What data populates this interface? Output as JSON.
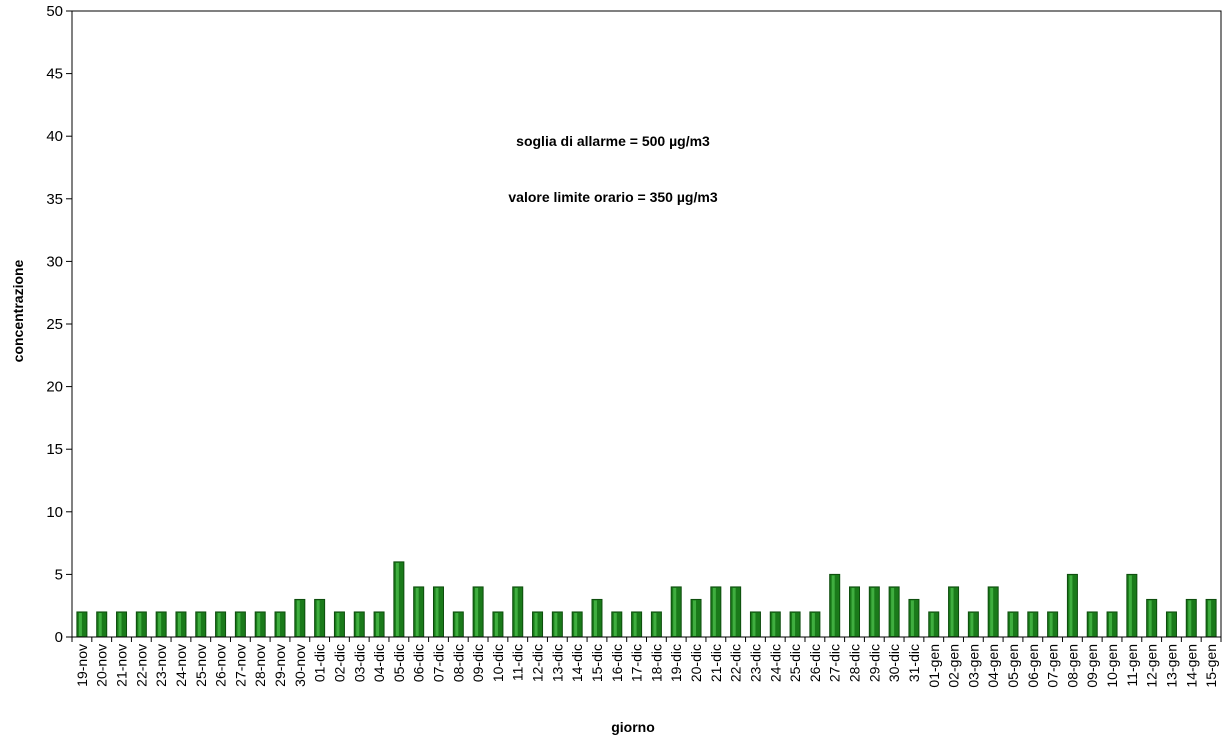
{
  "chart_data": {
    "type": "bar",
    "title": "",
    "xlabel": "giorno",
    "ylabel": "concentrazione",
    "ylim": [
      0,
      50
    ],
    "yticks": [
      0,
      5,
      10,
      15,
      20,
      25,
      30,
      35,
      40,
      45,
      50
    ],
    "grid": false,
    "legend": "none",
    "bar_color": "#1a7a1a",
    "annotations": [
      "soglia di allarme = 500 µg/m3",
      "valore limite orario = 350 µg/m3"
    ],
    "categories": [
      "19-nov",
      "20-nov",
      "21-nov",
      "22-nov",
      "23-nov",
      "24-nov",
      "25-nov",
      "26-nov",
      "27-nov",
      "28-nov",
      "29-nov",
      "30-nov",
      "01-dic",
      "02-dic",
      "03-dic",
      "04-dic",
      "05-dic",
      "06-dic",
      "07-dic",
      "08-dic",
      "09-dic",
      "10-dic",
      "11-dic",
      "12-dic",
      "13-dic",
      "14-dic",
      "15-dic",
      "16-dic",
      "17-dic",
      "18-dic",
      "19-dic",
      "20-dic",
      "21-dic",
      "22-dic",
      "23-dic",
      "24-dic",
      "25-dic",
      "26-dic",
      "27-dic",
      "28-dic",
      "29-dic",
      "30-dic",
      "31-dic",
      "01-gen",
      "02-gen",
      "03-gen",
      "04-gen",
      "05-gen",
      "06-gen",
      "07-gen",
      "08-gen",
      "09-gen",
      "10-gen",
      "11-gen",
      "12-gen",
      "13-gen",
      "14-gen",
      "15-gen"
    ],
    "values": [
      2,
      2,
      2,
      2,
      2,
      2,
      2,
      2,
      2,
      2,
      2,
      3,
      3,
      2,
      2,
      2,
      6,
      4,
      4,
      2,
      4,
      2,
      4,
      2,
      2,
      2,
      3,
      2,
      2,
      2,
      4,
      3,
      4,
      4,
      2,
      2,
      2,
      2,
      5,
      4,
      4,
      4,
      3,
      2,
      4,
      2,
      4,
      2,
      2,
      2,
      5,
      2,
      2,
      5,
      3,
      2,
      3,
      3
    ]
  }
}
